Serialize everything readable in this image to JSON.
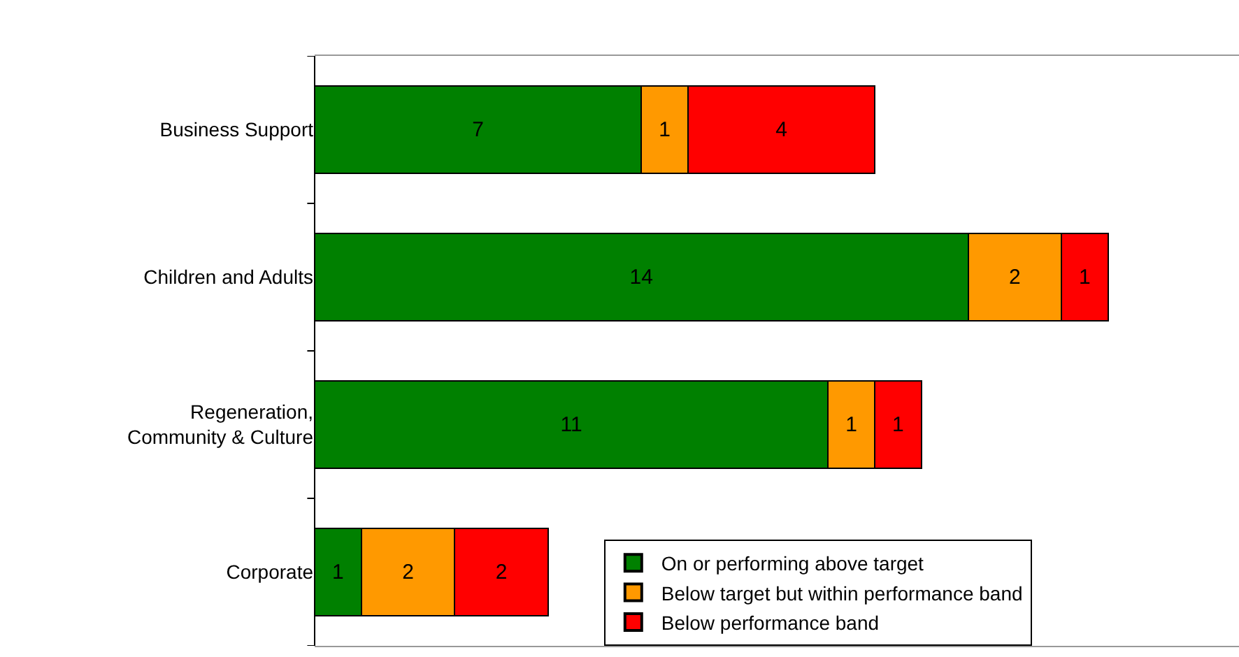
{
  "chart_data": {
    "type": "bar",
    "orientation": "horizontal",
    "stacked": true,
    "data_labels": true,
    "legend": "bottom right",
    "categories": [
      "Business Support",
      "Children and Adults",
      "Regeneration,\nCommunity & Culture",
      "Corporate"
    ],
    "series": [
      {
        "name": "On or performing above target",
        "color": "#008000",
        "values": [
          7,
          14,
          11,
          1
        ]
      },
      {
        "name": "Below target but within performance band",
        "color": "#ff9900",
        "values": [
          1,
          2,
          1,
          2
        ]
      },
      {
        "name": "Below performance band",
        "color": "#ff0000",
        "values": [
          4,
          1,
          1,
          2
        ]
      }
    ]
  }
}
